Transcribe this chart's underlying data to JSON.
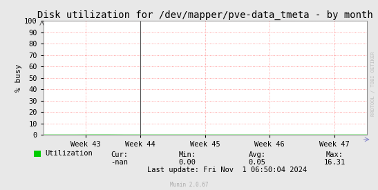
{
  "title": "Disk utilization for /dev/mapper/pve-data_tmeta - by month",
  "ylabel": "% busy",
  "background_color": "#e8e8e8",
  "plot_bg_color": "#ffffff",
  "grid_color": "#ff8888",
  "ylim": [
    0,
    100
  ],
  "yticks": [
    0,
    10,
    20,
    30,
    40,
    50,
    60,
    70,
    80,
    90,
    100
  ],
  "x_tick_labels": [
    "Week 43",
    "Week 44",
    "Week 45",
    "Week 46",
    "Week 47"
  ],
  "x_tick_positions": [
    0.13,
    0.3,
    0.5,
    0.7,
    0.9
  ],
  "line_color": "#00cc00",
  "line_data_x": [
    0.0,
    0.1,
    0.15,
    0.2,
    0.25,
    0.27,
    0.3,
    0.35,
    1.0
  ],
  "line_data_y": [
    0.0,
    0.0,
    0.05,
    0.05,
    0.0,
    0.0,
    0.0,
    0.0,
    0.0
  ],
  "vline_x": 0.3,
  "vline_color": "#555555",
  "legend_label": "Utilization",
  "legend_color": "#00cc00",
  "cur_label": "Cur:",
  "cur_value": "-nan",
  "min_label": "Min:",
  "min_value": "0.00",
  "avg_label": "Avg:",
  "avg_value": "0.05",
  "max_label": "Max:",
  "max_value": "16.31",
  "last_update": "Last update: Fri Nov  1 06:50:04 2024",
  "munin_version": "Munin 2.0.67",
  "rrdtool_label": "RRDTOOL / TOBI OETIKER",
  "title_fontsize": 10,
  "axis_fontsize": 8,
  "tick_fontsize": 7.5,
  "footer_fontsize": 7.5
}
